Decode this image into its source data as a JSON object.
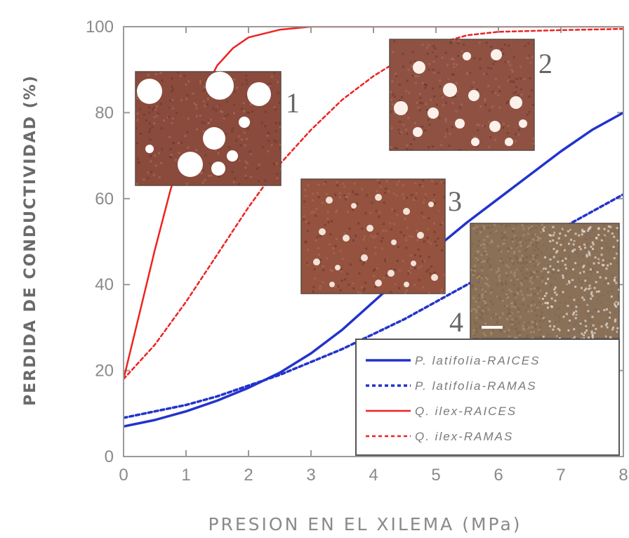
{
  "chart_data": {
    "type": "line",
    "xlabel": "PRESION EN EL XILEMA (MPa)",
    "ylabel": "PERDIDA DE CONDUCTIVIDAD (%)",
    "xlim": [
      0,
      8
    ],
    "ylim": [
      0,
      100
    ],
    "xticks": [
      "0",
      "1",
      "2",
      "3",
      "4",
      "5",
      "6",
      "7",
      "8"
    ],
    "yticks": [
      "0",
      "20",
      "40",
      "60",
      "80",
      "100"
    ],
    "grid": false,
    "legend_position": "bottom-right",
    "series": [
      {
        "name": "P. latifolia-RAICES",
        "style": "solid",
        "color": "#2233cc",
        "x": [
          0,
          0.5,
          1,
          1.5,
          2,
          2.5,
          3,
          3.5,
          4,
          4.5,
          5,
          5.5,
          6,
          6.5,
          7,
          7.5,
          8
        ],
        "y": [
          7,
          8.5,
          10.5,
          13,
          16,
          19.5,
          24,
          29.5,
          36,
          42.5,
          48.5,
          54.5,
          60,
          65.5,
          71,
          76,
          80
        ]
      },
      {
        "name": "P. latifolia-RAMAS",
        "style": "dashed",
        "color": "#2233cc",
        "x": [
          0,
          0.5,
          1,
          1.5,
          2,
          2.5,
          3,
          3.5,
          4,
          4.5,
          5,
          5.5,
          6,
          6.5,
          7,
          7.5,
          8
        ],
        "y": [
          9,
          10.5,
          12,
          14,
          16.5,
          19,
          22,
          25,
          28.5,
          32,
          36,
          40,
          44,
          48.5,
          53,
          57,
          61
        ]
      },
      {
        "name": "Q. ilex-RAICES",
        "style": "solid",
        "color": "#ee2222",
        "x": [
          0,
          0.25,
          0.5,
          0.75,
          1,
          1.25,
          1.5,
          1.75,
          2,
          2.5,
          3,
          4,
          5,
          6,
          7,
          8
        ],
        "y": [
          18,
          33,
          48,
          62,
          74,
          84,
          91,
          95,
          97.5,
          99.3,
          100,
          100,
          100,
          100,
          100,
          100
        ]
      },
      {
        "name": "Q. ilex-RAMAS",
        "style": "dashed",
        "color": "#ee2222",
        "x": [
          0,
          0.5,
          1,
          1.5,
          2,
          2.5,
          3,
          3.5,
          4,
          4.5,
          5,
          5.5,
          6,
          7,
          8
        ],
        "y": [
          18,
          26,
          36,
          47,
          58,
          68,
          76,
          83,
          88.5,
          93,
          96,
          98,
          98.8,
          99.2,
          99.5
        ]
      }
    ],
    "insets": [
      {
        "label": "1",
        "tone": "#8a4a3c",
        "pore": "#ffffff"
      },
      {
        "label": "2",
        "tone": "#8f5242",
        "pore": "#fbf1ea"
      },
      {
        "label": "3",
        "tone": "#94523f",
        "pore": "#f3e2d8"
      },
      {
        "label": "4",
        "tone": "#8b7058",
        "pore": "#d8d0c4"
      }
    ]
  }
}
